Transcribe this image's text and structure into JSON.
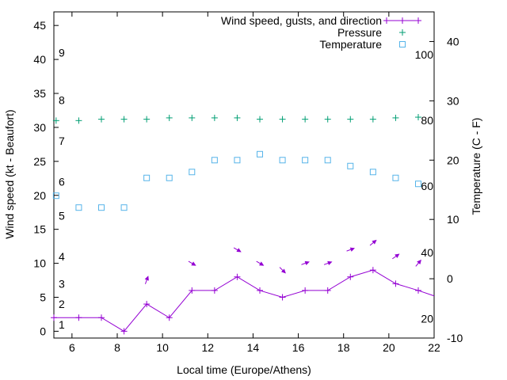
{
  "chart_data": {
    "type": "line",
    "title": "",
    "xlabel": "Local time (Europe/Athens)",
    "ylabel": "Wind speed (kt - Beaufort)",
    "y2label": "Temperature (C - F)",
    "xlim": [
      5.2,
      22
    ],
    "ylim": [
      -1,
      47
    ],
    "y2lim": [
      -10,
      45
    ],
    "x_ticks": [
      6,
      8,
      10,
      12,
      14,
      16,
      18,
      20,
      22
    ],
    "y_ticks": [
      0,
      5,
      10,
      15,
      20,
      25,
      30,
      35,
      40,
      45
    ],
    "y2_ticks": [
      -10,
      0,
      10,
      20,
      30,
      40
    ],
    "beaufort_labels": [
      {
        "label": "1",
        "kt": 1
      },
      {
        "label": "2",
        "kt": 4
      },
      {
        "label": "3",
        "kt": 7
      },
      {
        "label": "4",
        "kt": 11
      },
      {
        "label": "5",
        "kt": 17
      },
      {
        "label": "6",
        "kt": 22
      },
      {
        "label": "7",
        "kt": 28
      },
      {
        "label": "8",
        "kt": 34
      },
      {
        "label": "9",
        "kt": 41
      }
    ],
    "fahrenheit_labels": [
      {
        "label": "20",
        "c": -6.7
      },
      {
        "label": "40",
        "c": 4.4
      },
      {
        "label": "60",
        "c": 15.6
      },
      {
        "label": "80",
        "c": 26.7
      },
      {
        "label": "100",
        "c": 37.8
      }
    ],
    "series": [
      {
        "name": "Wind speed, gusts, and direction",
        "color": "#9400d3",
        "axis": "y",
        "marker": "plus-line",
        "x": [
          5.2,
          6.3,
          7.3,
          8.3,
          9.3,
          10.3,
          11.3,
          12.3,
          13.3,
          14.3,
          15.3,
          16.3,
          17.3,
          18.3,
          19.3,
          20.3,
          21.3,
          22.0
        ],
        "values": [
          2,
          2,
          2,
          0,
          4,
          2,
          6,
          6,
          8,
          6,
          5,
          6,
          6,
          8,
          9,
          7,
          6,
          5.2
        ]
      },
      {
        "name": "Pressure",
        "color": "#009e73",
        "axis": "y",
        "marker": "plus",
        "x": [
          5.3,
          6.3,
          7.3,
          8.3,
          9.3,
          10.3,
          11.3,
          12.3,
          13.3,
          14.3,
          15.3,
          16.3,
          17.3,
          18.3,
          19.3,
          20.3,
          21.3
        ],
        "values": [
          31.0,
          31.0,
          31.2,
          31.2,
          31.2,
          31.4,
          31.4,
          31.4,
          31.4,
          31.2,
          31.2,
          31.2,
          31.2,
          31.2,
          31.2,
          31.4,
          31.5
        ]
      },
      {
        "name": "Temperature",
        "color": "#56b4e9",
        "axis": "y2",
        "marker": "square",
        "x": [
          5.3,
          6.3,
          7.3,
          8.3,
          9.3,
          10.3,
          11.3,
          12.3,
          13.3,
          14.3,
          15.3,
          16.3,
          17.3,
          18.3,
          19.3,
          20.3,
          21.3
        ],
        "values": [
          14,
          12,
          12,
          12,
          17,
          17,
          18,
          20,
          20,
          21,
          20,
          20,
          20,
          19,
          18,
          17,
          16
        ]
      }
    ],
    "wind_arrows": [
      {
        "x": 9.3,
        "kt": 7.5,
        "direction_deg": 200
      },
      {
        "x": 11.3,
        "kt": 10,
        "direction_deg": 300
      },
      {
        "x": 13.3,
        "kt": 12,
        "direction_deg": 300
      },
      {
        "x": 14.3,
        "kt": 10,
        "direction_deg": 300
      },
      {
        "x": 15.3,
        "kt": 9,
        "direction_deg": 315
      },
      {
        "x": 16.3,
        "kt": 10,
        "direction_deg": 250
      },
      {
        "x": 17.3,
        "kt": 10,
        "direction_deg": 250
      },
      {
        "x": 18.3,
        "kt": 12,
        "direction_deg": 250
      },
      {
        "x": 19.3,
        "kt": 13,
        "direction_deg": 230
      },
      {
        "x": 20.3,
        "kt": 11,
        "direction_deg": 235
      },
      {
        "x": 21.3,
        "kt": 10,
        "direction_deg": 220
      }
    ],
    "legend_position": "top-right"
  }
}
